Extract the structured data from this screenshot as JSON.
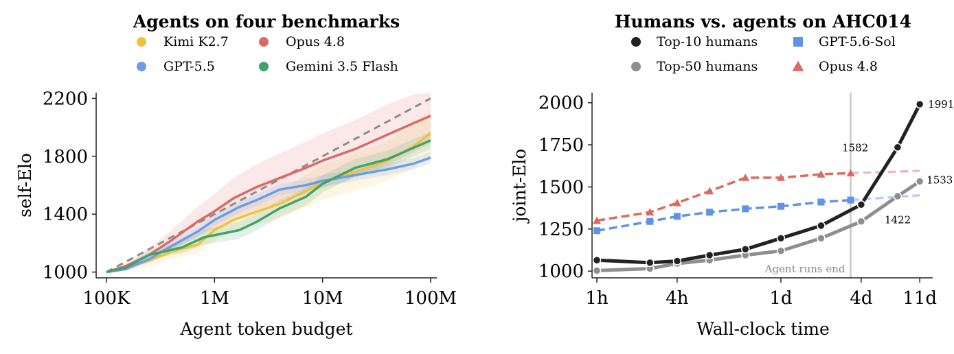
{
  "chart_data": [
    {
      "type": "line",
      "title": "Agents on four benchmarks",
      "xlabel": "Agent token budget",
      "ylabel": "self-Elo",
      "x_scale": "log",
      "xlim": [
        100000,
        100000000
      ],
      "ylim": [
        960,
        2240
      ],
      "x_ticks": [
        100000,
        1000000,
        10000000,
        100000000
      ],
      "x_tick_labels": [
        "100K",
        "1M",
        "10M",
        "100M"
      ],
      "y_ticks": [
        1000,
        1400,
        1800,
        2200
      ],
      "y_tick_labels": [
        "1000",
        "1400",
        "1800",
        "2200"
      ],
      "grid": false,
      "legend_position": "top (two columns, above plot)",
      "reference_line": {
        "style": "dashed",
        "color": "#8c8c8c",
        "x": [
          100000,
          100000000
        ],
        "y": [
          1000,
          2200
        ]
      },
      "series": [
        {
          "name": "Kimi K2.7",
          "color": "#f0c23b",
          "x": [
            100000,
            150000,
            250000,
            400000,
            700000,
            1000000,
            1500000,
            2500000,
            4000000,
            7000000,
            10000000,
            20000000,
            40000000,
            70000000,
            100000000
          ],
          "y": [
            1000,
            1030,
            1080,
            1140,
            1190,
            1290,
            1360,
            1420,
            1470,
            1560,
            1620,
            1690,
            1770,
            1870,
            1960
          ],
          "band_halfwidth": [
            0,
            20,
            40,
            50,
            60,
            70,
            80,
            90,
            100,
            110,
            120,
            130,
            140,
            150,
            160
          ]
        },
        {
          "name": "Opus 4.8",
          "color": "#dc6a62",
          "x": [
            100000,
            150000,
            250000,
            400000,
            700000,
            1000000,
            1500000,
            2500000,
            4000000,
            7000000,
            10000000,
            20000000,
            40000000,
            70000000,
            100000000
          ],
          "y": [
            1000,
            1040,
            1120,
            1220,
            1350,
            1420,
            1510,
            1590,
            1650,
            1720,
            1770,
            1850,
            1950,
            2030,
            2080
          ],
          "band_halfwidth": [
            0,
            20,
            50,
            70,
            100,
            120,
            140,
            160,
            170,
            180,
            190,
            200,
            210,
            200,
            190
          ]
        },
        {
          "name": "GPT-5.5",
          "color": "#6a9ce8",
          "x": [
            100000,
            150000,
            250000,
            400000,
            700000,
            1000000,
            1700000,
            2500000,
            4000000,
            7000000,
            10000000,
            20000000,
            40000000,
            70000000,
            100000000
          ],
          "y": [
            1000,
            1020,
            1090,
            1180,
            1280,
            1360,
            1450,
            1500,
            1570,
            1600,
            1630,
            1670,
            1710,
            1750,
            1790
          ],
          "band_halfwidth": [
            0,
            15,
            25,
            30,
            35,
            40,
            40,
            40,
            40,
            40,
            40,
            40,
            40,
            40,
            40
          ]
        },
        {
          "name": "Gemini 3.5 Flash",
          "color": "#3fa46b",
          "x": [
            100000,
            150000,
            250000,
            500000,
            800000,
            1700000,
            2500000,
            4000000,
            7000000,
            10000000,
            20000000,
            40000000,
            70000000,
            100000000
          ],
          "y": [
            1000,
            1030,
            1120,
            1170,
            1240,
            1290,
            1350,
            1440,
            1520,
            1610,
            1720,
            1780,
            1860,
            1910
          ],
          "band_halfwidth": [
            0,
            15,
            30,
            40,
            50,
            60,
            60,
            60,
            60,
            60,
            60,
            60,
            60,
            60
          ]
        }
      ]
    },
    {
      "type": "line",
      "title": "Humans vs. agents on AHC014",
      "xlabel": "Wall-clock time",
      "ylabel": "joint-Elo",
      "x_scale": "log",
      "x_unit": "hours",
      "xlim": [
        0.92,
        330
      ],
      "ylim": [
        960,
        2060
      ],
      "x_ticks": [
        1,
        4,
        24,
        96,
        264
      ],
      "x_tick_labels": [
        "1h",
        "4h",
        "1d",
        "4d",
        "11d"
      ],
      "y_ticks": [
        1000,
        1250,
        1500,
        1750,
        2000
      ],
      "y_tick_labels": [
        "1000",
        "1250",
        "1500",
        "1750",
        "2000"
      ],
      "grid": false,
      "legend_position": "top (two columns, above plot)",
      "vertical_line": {
        "x": 80,
        "label": "Agent runs end",
        "color": "#c8c8c8"
      },
      "series": [
        {
          "name": "Top-10 humans",
          "color": "#222222",
          "marker": "circle",
          "x": [
            1,
            2.5,
            4,
            7,
            13,
            24,
            48,
            96,
            180,
            264
          ],
          "y": [
            1065,
            1050,
            1060,
            1095,
            1130,
            1195,
            1270,
            1395,
            1735,
            1991
          ]
        },
        {
          "name": "Top-50 humans",
          "color": "#8e8e8e",
          "marker": "circle",
          "x": [
            1,
            2.5,
            4,
            7,
            13,
            24,
            48,
            96,
            180,
            264
          ],
          "y": [
            1003,
            1015,
            1045,
            1065,
            1095,
            1120,
            1195,
            1295,
            1445,
            1533
          ]
        },
        {
          "name": "GPT-5.6-Sol",
          "color": "#5f93e8",
          "marker": "square",
          "x": [
            1,
            2.5,
            4,
            7,
            13,
            24,
            48,
            80
          ],
          "y": [
            1240,
            1295,
            1325,
            1350,
            1370,
            1385,
            1410,
            1422
          ],
          "extension": {
            "x": [
              80,
              264
            ],
            "y": [
              1422,
              1450
            ]
          }
        },
        {
          "name": "Opus 4.8",
          "color": "#dd6a61",
          "marker": "triangle",
          "x": [
            1,
            2.5,
            4,
            7,
            13,
            24,
            48,
            80
          ],
          "y": [
            1300,
            1350,
            1405,
            1475,
            1555,
            1555,
            1575,
            1582
          ],
          "extension": {
            "x": [
              80,
              264
            ],
            "y": [
              1582,
              1595
            ]
          }
        }
      ],
      "annotations": [
        "1991",
        "1582",
        "1533",
        "1422"
      ]
    }
  ]
}
